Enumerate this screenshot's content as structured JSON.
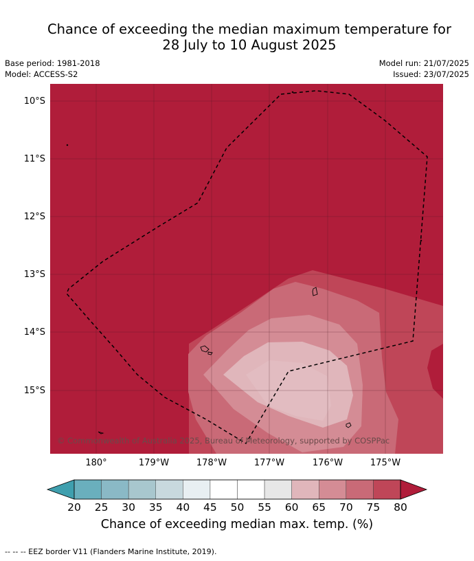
{
  "header": {
    "title_line1": "Chance of exceeding the median maximum temperature for",
    "title_line2": "28 July to 10 August 2025",
    "base_period": "Base period: 1981-2018",
    "model": "Model: ACCESS-S2",
    "model_run": "Model run: 21/07/2025",
    "issued": "Issued: 23/07/2025"
  },
  "map": {
    "lat_labels": [
      "10°S",
      "11°S",
      "12°S",
      "13°S",
      "14°S",
      "15°S"
    ],
    "lon_labels": [
      "180°",
      "179°W",
      "178°W",
      "177°W",
      "176°W",
      "175°W"
    ],
    "copyright": "© Commonwealth of Australia 2025, Bureau of Meteorology, supported by COSPPac",
    "background_color": "#b01d3a",
    "border_style": "dashed",
    "categories_shown": [
      "75-80",
      "70-75",
      "65-70",
      "60-65",
      ">80"
    ]
  },
  "colorbar": {
    "ticks": [
      "20",
      "25",
      "30",
      "35",
      "40",
      "45",
      "50",
      "55",
      "60",
      "65",
      "70",
      "75",
      "80"
    ],
    "colors": [
      "#3f9fae",
      "#6aafbd",
      "#8ab9c6",
      "#a8c7ce",
      "#c8d9de",
      "#e8eff2",
      "#ffffff",
      "#ffffff",
      "#e7e7e7",
      "#e0b6bb",
      "#d48c95",
      "#c96a77",
      "#bf4658",
      "#b01d3a"
    ],
    "title": "Chance of exceeding median max. temp. (%)"
  },
  "footnote": "--  --  -- EEZ border V11 (Flanders Marine Institute, 2019)."
}
